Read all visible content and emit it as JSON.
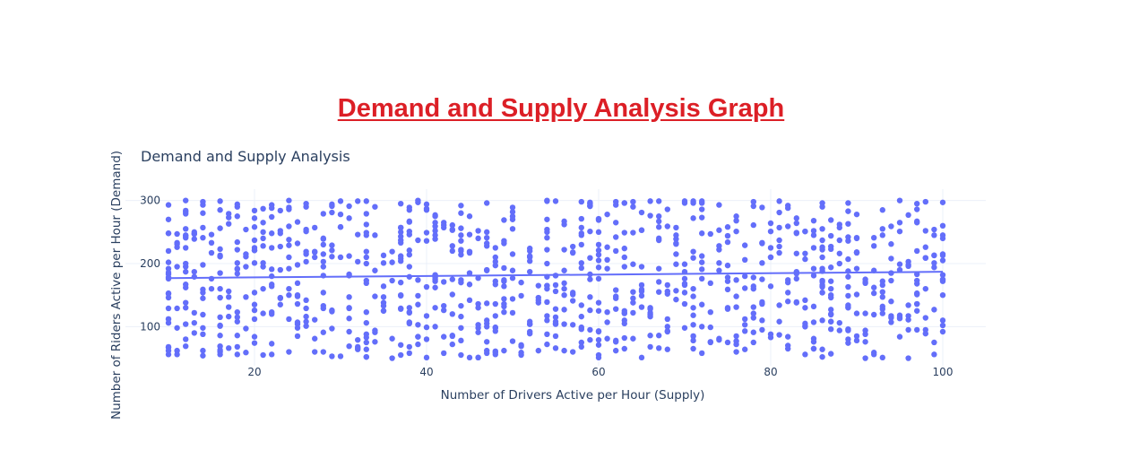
{
  "page_heading": "Demand and Supply Analysis Graph",
  "colors": {
    "heading": "#dc1f26",
    "marker": "#636efa",
    "text": "#2a3f5f",
    "grid": "#ebf0f8"
  },
  "chart_data": {
    "type": "scatter",
    "title": "Demand and Supply Analysis",
    "xlabel": "Number of Drivers Active per Hour (Supply)",
    "ylabel": "Number of Riders Active per Hour (Demand)",
    "xlim": [
      5,
      105
    ],
    "ylim": [
      38,
      318
    ],
    "xticks": [
      20,
      40,
      60,
      80,
      100
    ],
    "yticks": [
      100,
      200,
      300
    ],
    "grid": true,
    "point_count_estimate": 1000,
    "x_range": [
      10,
      100
    ],
    "y_range": [
      50,
      300
    ],
    "x_integer_values": true,
    "trendline": {
      "x": [
        10,
        100
      ],
      "y": [
        177,
        187
      ]
    },
    "sample_points": [
      [
        10,
        293
      ],
      [
        10,
        248
      ],
      [
        10,
        220
      ],
      [
        10,
        183
      ],
      [
        10,
        153
      ],
      [
        10,
        112
      ],
      [
        10,
        68
      ],
      [
        10,
        56
      ],
      [
        12,
        300
      ],
      [
        12,
        255
      ],
      [
        12,
        200
      ],
      [
        12,
        130
      ],
      [
        12,
        80
      ],
      [
        16,
        299
      ],
      [
        16,
        223
      ],
      [
        16,
        160
      ],
      [
        16,
        101
      ],
      [
        16,
        60
      ],
      [
        24,
        300
      ],
      [
        24,
        210
      ],
      [
        24,
        150
      ],
      [
        24,
        60
      ],
      [
        33,
        299
      ],
      [
        33,
        200
      ],
      [
        33,
        88
      ],
      [
        33,
        52
      ],
      [
        37,
        295
      ],
      [
        38,
        214
      ],
      [
        38,
        130
      ],
      [
        38,
        58
      ],
      [
        44,
        292
      ],
      [
        44,
        170
      ],
      [
        44,
        55
      ],
      [
        47,
        296
      ],
      [
        47,
        190
      ],
      [
        47,
        110
      ],
      [
        47,
        62
      ],
      [
        54,
        300
      ],
      [
        54,
        200
      ],
      [
        54,
        72
      ],
      [
        59,
        295
      ],
      [
        59,
        175
      ],
      [
        59,
        95
      ],
      [
        62,
        298
      ],
      [
        62,
        148
      ],
      [
        62,
        78
      ],
      [
        66,
        299
      ],
      [
        66,
        130
      ],
      [
        66,
        86
      ],
      [
        71,
        296
      ],
      [
        71,
        130
      ],
      [
        71,
        85
      ],
      [
        78,
        298
      ],
      [
        78,
        160
      ],
      [
        78,
        91
      ],
      [
        82,
        292
      ],
      [
        82,
        140
      ],
      [
        82,
        84
      ],
      [
        86,
        290
      ],
      [
        86,
        210
      ],
      [
        86,
        110
      ],
      [
        89,
        296
      ],
      [
        89,
        130
      ],
      [
        89,
        96
      ],
      [
        95,
        300
      ],
      [
        95,
        190
      ],
      [
        95,
        115
      ],
      [
        98,
        298
      ],
      [
        98,
        160
      ],
      [
        98,
        95
      ],
      [
        100,
        260
      ],
      [
        100,
        240
      ],
      [
        100,
        205
      ],
      [
        100,
        175
      ],
      [
        100,
        150
      ]
    ]
  }
}
